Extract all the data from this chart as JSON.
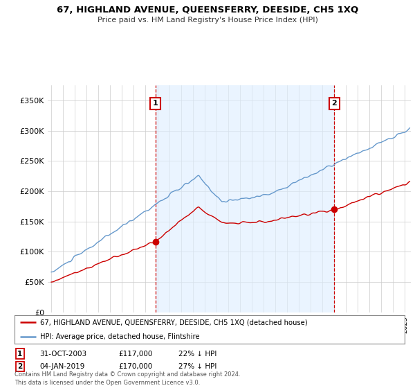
{
  "title": "67, HIGHLAND AVENUE, QUEENSFERRY, DEESIDE, CH5 1XQ",
  "subtitle": "Price paid vs. HM Land Registry's House Price Index (HPI)",
  "ylabel_ticks": [
    "£0",
    "£50K",
    "£100K",
    "£150K",
    "£200K",
    "£250K",
    "£300K",
    "£350K"
  ],
  "ylim": [
    0,
    375000
  ],
  "xlim_start": 1994.7,
  "xlim_end": 2025.5,
  "sale1_date": 2003.83,
  "sale1_price": 117000,
  "sale1_label": "1",
  "sale2_date": 2019.01,
  "sale2_price": 170000,
  "sale2_label": "2",
  "legend_line1": "67, HIGHLAND AVENUE, QUEENSFERRY, DEESIDE, CH5 1XQ (detached house)",
  "legend_line2": "HPI: Average price, detached house, Flintshire",
  "table_row1": [
    "1",
    "31-OCT-2003",
    "£117,000",
    "22% ↓ HPI"
  ],
  "table_row2": [
    "2",
    "04-JAN-2019",
    "£170,000",
    "27% ↓ HPI"
  ],
  "footnote": "Contains HM Land Registry data © Crown copyright and database right 2024.\nThis data is licensed under the Open Government Licence v3.0.",
  "hpi_color": "#6699cc",
  "price_color": "#cc0000",
  "sale_vline_color": "#cc0000",
  "fill_color": "#ddeeff",
  "background_color": "#ffffff",
  "grid_color": "#cccccc"
}
